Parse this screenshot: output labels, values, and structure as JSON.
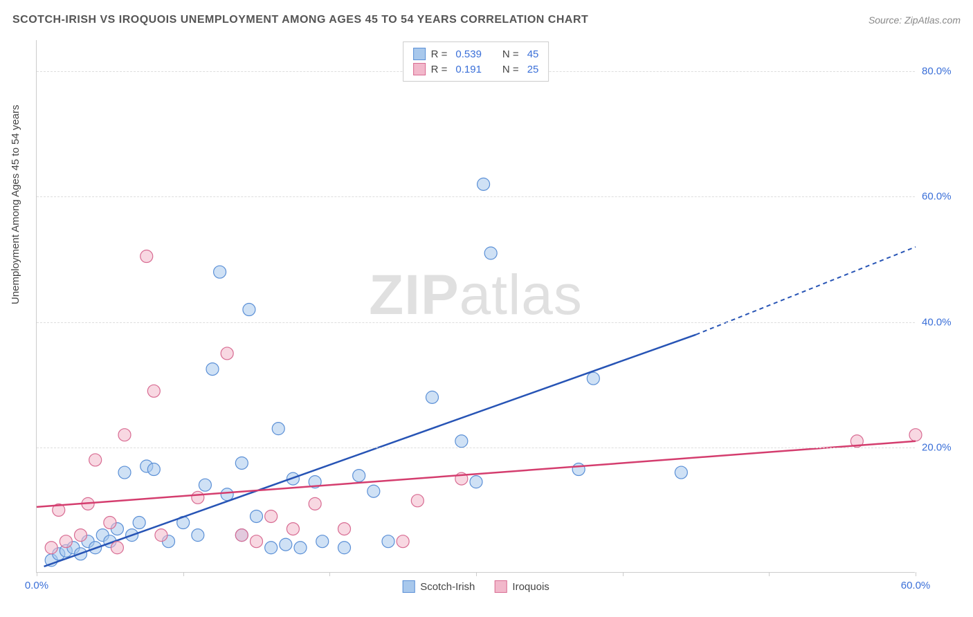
{
  "title": "SCOTCH-IRISH VS IROQUOIS UNEMPLOYMENT AMONG AGES 45 TO 54 YEARS CORRELATION CHART",
  "source_prefix": "Source: ",
  "source_name": "ZipAtlas.com",
  "y_axis_label": "Unemployment Among Ages 45 to 54 years",
  "watermark_bold": "ZIP",
  "watermark_light": "atlas",
  "chart": {
    "type": "scatter",
    "xlim": [
      0,
      60
    ],
    "ylim": [
      0,
      85
    ],
    "x_ticks_major": [
      0,
      10,
      20,
      30,
      40,
      50,
      60
    ],
    "x_tick_labels": [
      {
        "v": 0,
        "label": "0.0%"
      },
      {
        "v": 60,
        "label": "60.0%"
      }
    ],
    "y_ticks": [
      {
        "v": 20,
        "label": "20.0%"
      },
      {
        "v": 40,
        "label": "40.0%"
      },
      {
        "v": 60,
        "label": "60.0%"
      },
      {
        "v": 80,
        "label": "80.0%"
      }
    ],
    "background_color": "#ffffff",
    "grid_color": "#dddddd",
    "series": [
      {
        "name": "Scotch-Irish",
        "color_fill": "#a8c8ec",
        "color_stroke": "#5a8fd6",
        "line_color": "#2754b5",
        "marker_radius": 9,
        "fill_opacity": 0.55,
        "R": "0.539",
        "N": "45",
        "trend": {
          "x1": 0.5,
          "y1": 1,
          "x2": 45,
          "y2": 38,
          "dash_from_x": 45,
          "dash_to_x": 60,
          "dash_to_y": 52
        },
        "points": [
          [
            1,
            2
          ],
          [
            1.5,
            3
          ],
          [
            2,
            3.5
          ],
          [
            2.5,
            4
          ],
          [
            3,
            3
          ],
          [
            3.5,
            5
          ],
          [
            4,
            4
          ],
          [
            4.5,
            6
          ],
          [
            5,
            5
          ],
          [
            5.5,
            7
          ],
          [
            6,
            16
          ],
          [
            6.5,
            6
          ],
          [
            7,
            8
          ],
          [
            7.5,
            17
          ],
          [
            8,
            16.5
          ],
          [
            9,
            5
          ],
          [
            10,
            8
          ],
          [
            11,
            6
          ],
          [
            11.5,
            14
          ],
          [
            12,
            32.5
          ],
          [
            12.5,
            48
          ],
          [
            13,
            12.5
          ],
          [
            14,
            6
          ],
          [
            14,
            17.5
          ],
          [
            14.5,
            42
          ],
          [
            15,
            9
          ],
          [
            16,
            4
          ],
          [
            16.5,
            23
          ],
          [
            17,
            4.5
          ],
          [
            17.5,
            15
          ],
          [
            18,
            4
          ],
          [
            19,
            14.5
          ],
          [
            19.5,
            5
          ],
          [
            21,
            4
          ],
          [
            22,
            15.5
          ],
          [
            23,
            13
          ],
          [
            24,
            5
          ],
          [
            27,
            28
          ],
          [
            29,
            21
          ],
          [
            30,
            14.5
          ],
          [
            30.5,
            62
          ],
          [
            31,
            51
          ],
          [
            37,
            16.5
          ],
          [
            38,
            31
          ],
          [
            44,
            16
          ]
        ]
      },
      {
        "name": "Iroquois",
        "color_fill": "#f2b8cb",
        "color_stroke": "#d86b92",
        "line_color": "#d43d6e",
        "marker_radius": 9,
        "fill_opacity": 0.55,
        "R": "0.191",
        "N": "25",
        "trend": {
          "x1": 0,
          "y1": 10.5,
          "x2": 60,
          "y2": 21
        },
        "points": [
          [
            1,
            4
          ],
          [
            1.5,
            10
          ],
          [
            2,
            5
          ],
          [
            3,
            6
          ],
          [
            3.5,
            11
          ],
          [
            4,
            18
          ],
          [
            5,
            8
          ],
          [
            5.5,
            4
          ],
          [
            6,
            22
          ],
          [
            7.5,
            50.5
          ],
          [
            8,
            29
          ],
          [
            8.5,
            6
          ],
          [
            11,
            12
          ],
          [
            13,
            35
          ],
          [
            14,
            6
          ],
          [
            15,
            5
          ],
          [
            16,
            9
          ],
          [
            17.5,
            7
          ],
          [
            19,
            11
          ],
          [
            21,
            7
          ],
          [
            25,
            5
          ],
          [
            26,
            11.5
          ],
          [
            29,
            15
          ],
          [
            56,
            21
          ],
          [
            60,
            22
          ]
        ]
      }
    ],
    "legend_top": {
      "rows": [
        {
          "swatch_fill": "#a8c8ec",
          "swatch_stroke": "#5a8fd6",
          "r_label": "R =",
          "r_val": "0.539",
          "n_label": "N =",
          "n_val": "45"
        },
        {
          "swatch_fill": "#f2b8cb",
          "swatch_stroke": "#d86b92",
          "r_label": "R =",
          "r_val": "0.191",
          "n_label": "N =",
          "n_val": "25"
        }
      ]
    },
    "legend_bottom": [
      {
        "swatch_fill": "#a8c8ec",
        "swatch_stroke": "#5a8fd6",
        "label": "Scotch-Irish"
      },
      {
        "swatch_fill": "#f2b8cb",
        "swatch_stroke": "#d86b92",
        "label": "Iroquois"
      }
    ]
  }
}
